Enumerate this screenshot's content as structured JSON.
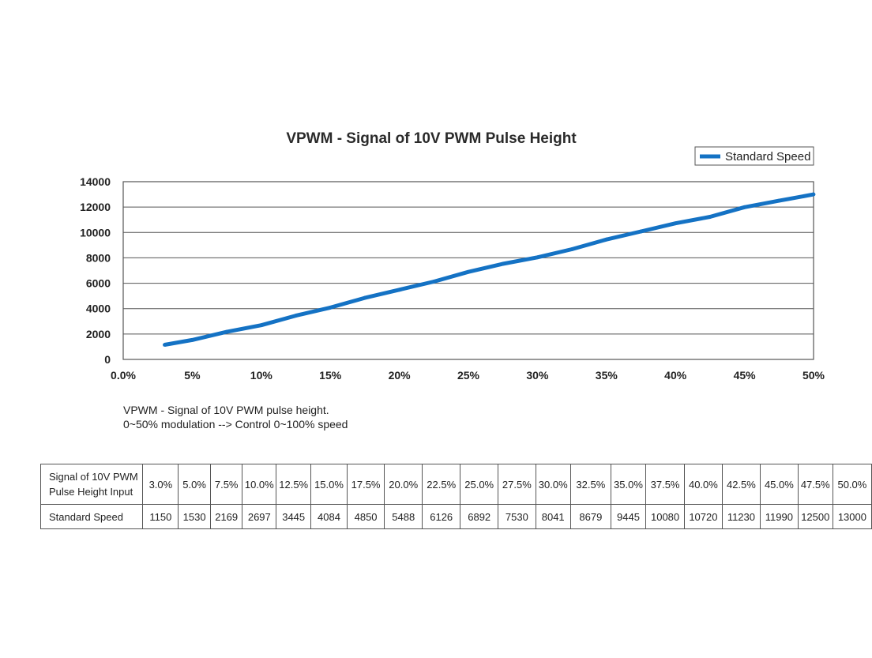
{
  "chart_data": {
    "type": "line",
    "title": "VPWM - Signal of 10V PWM Pulse Height",
    "xlabel": "",
    "ylabel": "",
    "xlim": [
      0,
      50
    ],
    "ylim": [
      0,
      14000
    ],
    "y_ticks": [
      0,
      2000,
      4000,
      6000,
      8000,
      10000,
      12000,
      14000
    ],
    "y_tick_labels": [
      "0",
      "2000",
      "4000",
      "6000",
      "8000",
      "10000",
      "12000",
      "14000"
    ],
    "x_ticks": [
      0,
      5,
      10,
      15,
      20,
      25,
      30,
      35,
      40,
      45,
      50
    ],
    "x_tick_labels": [
      "0.0%",
      "5%",
      "10%",
      "15%",
      "20%",
      "25%",
      "30%",
      "35%",
      "40%",
      "45%",
      "50%"
    ],
    "grid": "horizontal",
    "legend_position": "top-right",
    "series": [
      {
        "name": "Standard Speed",
        "color": "#1472c4",
        "x": [
          3.0,
          5.0,
          7.5,
          10.0,
          12.5,
          15.0,
          17.5,
          20.0,
          22.5,
          25.0,
          27.5,
          30.0,
          32.5,
          35.0,
          37.5,
          40.0,
          42.5,
          45.0,
          47.5,
          50.0
        ],
        "values": [
          1150,
          1530,
          2169,
          2697,
          3445,
          4084,
          4850,
          5488,
          6126,
          6892,
          7530,
          8041,
          8679,
          9445,
          10080,
          10720,
          11230,
          11990,
          12500,
          13000
        ]
      }
    ]
  },
  "notes": {
    "line1": "VPWM - Signal of 10V PWM pulse height.",
    "line2": "0~50% modulation --> Control 0~100% speed"
  },
  "table": {
    "row1_header_line1": "Signal of 10V PWM",
    "row1_header_line2": "Pulse Height Input",
    "row1_values": [
      "3.0%",
      "5.0%",
      "7.5%",
      "10.0%",
      "12.5%",
      "15.0%",
      "17.5%",
      "20.0%",
      "22.5%",
      "25.0%",
      "27.5%",
      "30.0%",
      "32.5%",
      "35.0%",
      "37.5%",
      "40.0%",
      "42.5%",
      "45.0%",
      "47.5%",
      "50.0%"
    ],
    "row2_header": "Standard Speed",
    "row2_values": [
      "1150",
      "1530",
      "2169",
      "2697",
      "3445",
      "4084",
      "4850",
      "5488",
      "6126",
      "6892",
      "7530",
      "8041",
      "8679",
      "9445",
      "10080",
      "10720",
      "11230",
      "11990",
      "12500",
      "13000"
    ]
  }
}
